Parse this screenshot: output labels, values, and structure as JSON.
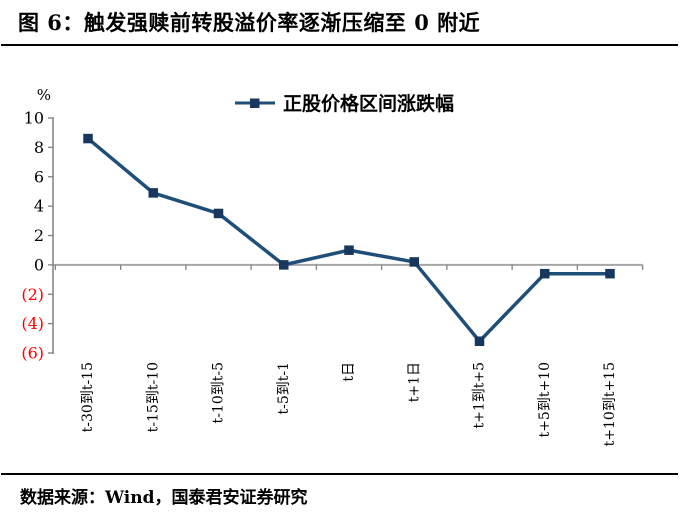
{
  "figure": {
    "title": "图 6：触发强赎前转股溢价率逐渐压缩至 0 附近",
    "source": "数据来源：Wind，国泰君安证券研究"
  },
  "chart_data": {
    "type": "line",
    "title": "图 6：触发强赎前转股溢价率逐渐压缩至 0 附近",
    "unit_label": "%",
    "legend_position": "top-center",
    "grid": false,
    "categories": [
      "t-30到t-15",
      "t-15到t-10",
      "t-10到t-5",
      "t-5到t-1",
      "t日",
      "t+1日",
      "t+1到t+5",
      "t+5到t+10",
      "t+10到t+15"
    ],
    "series": [
      {
        "name": "正股价格区间涨跌幅",
        "values": [
          8.6,
          4.9,
          3.5,
          0.0,
          1.0,
          0.2,
          -5.2,
          -0.6,
          -0.6
        ]
      }
    ],
    "ylim": [
      -6,
      10
    ],
    "ytick_step": 2,
    "yticks_display": [
      "10",
      "8",
      "6",
      "4",
      "2",
      "0",
      "(2)",
      "(4)",
      "(6)"
    ],
    "colors": {
      "line": "#1F4E79",
      "marker": "#17375D",
      "zero_line": "#A6A6A6",
      "axis": "#808080",
      "negative_label": "#FF0000",
      "text": "#000000"
    }
  }
}
